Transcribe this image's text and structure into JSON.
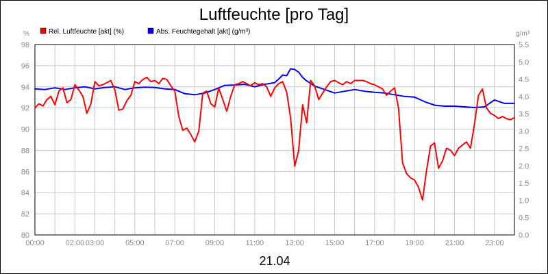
{
  "chart_data": {
    "type": "line",
    "title": "Luftfeuchte [pro Tag]",
    "date_label": "21.04",
    "y_left": {
      "unit": "%",
      "range": [
        80,
        98
      ],
      "ticks": [
        "80",
        "82",
        "84",
        "86",
        "88",
        "90",
        "92",
        "94",
        "96",
        "98"
      ]
    },
    "y_right": {
      "unit": "g/m³",
      "range": [
        0,
        5.5
      ],
      "ticks": [
        "0.0",
        "0.5",
        "1.0",
        "1.5",
        "2.0",
        "2.5",
        "3.0",
        "3.5",
        "4.0",
        "4.5",
        "5.0",
        "5.5"
      ]
    },
    "x": {
      "range_hours": [
        0,
        24
      ],
      "tick_labels": [
        {
          "h": 0,
          "label": "00:00"
        },
        {
          "h": 2,
          "label": "02:00"
        },
        {
          "h": 3,
          "label": "03:00"
        },
        {
          "h": 5,
          "label": "05:00"
        },
        {
          "h": 7,
          "label": "07:00"
        },
        {
          "h": 9,
          "label": "09:00"
        },
        {
          "h": 11,
          "label": "11:00"
        },
        {
          "h": 13,
          "label": "13:00"
        },
        {
          "h": 15,
          "label": "15:00"
        },
        {
          "h": 17,
          "label": "17:00"
        },
        {
          "h": 19,
          "label": "19:00"
        },
        {
          "h": 21,
          "label": "21:00"
        },
        {
          "h": 23,
          "label": "23:00"
        }
      ]
    },
    "grid": true,
    "legend_position": "top-left",
    "series": [
      {
        "name": "Rel. Luftfeuchte [akt] (%)",
        "color": "#ff0000",
        "axis": "left",
        "x": [
          0,
          0.2,
          0.4,
          0.6,
          0.8,
          1.0,
          1.2,
          1.4,
          1.6,
          1.8,
          2.0,
          2.2,
          2.4,
          2.6,
          2.8,
          3.0,
          3.2,
          3.4,
          3.6,
          3.8,
          4.0,
          4.2,
          4.4,
          4.6,
          4.8,
          5.0,
          5.2,
          5.4,
          5.6,
          5.8,
          6.0,
          6.2,
          6.4,
          6.6,
          6.8,
          7.0,
          7.2,
          7.4,
          7.6,
          7.8,
          8.0,
          8.2,
          8.4,
          8.6,
          8.8,
          9.0,
          9.2,
          9.4,
          9.6,
          9.8,
          10.0,
          10.2,
          10.4,
          10.6,
          10.8,
          11.0,
          11.2,
          11.4,
          11.6,
          11.8,
          12.0,
          12.2,
          12.4,
          12.6,
          12.8,
          13.0,
          13.2,
          13.4,
          13.6,
          13.8,
          14.0,
          14.2,
          14.4,
          14.6,
          14.8,
          15.0,
          15.2,
          15.4,
          15.6,
          15.8,
          16.0,
          16.2,
          16.4,
          16.6,
          16.8,
          17.0,
          17.2,
          17.4,
          17.6,
          17.8,
          18.0,
          18.2,
          18.4,
          18.6,
          18.8,
          19.0,
          19.2,
          19.4,
          19.6,
          19.8,
          20.0,
          20.2,
          20.4,
          20.6,
          20.8,
          21.0,
          21.2,
          21.4,
          21.6,
          21.8,
          22.0,
          22.2,
          22.4,
          22.6,
          22.8,
          23.0,
          23.2,
          23.4,
          23.6,
          23.8,
          24.0
        ],
        "values": [
          92.0,
          92.4,
          92.2,
          92.8,
          93.1,
          92.3,
          93.6,
          93.9,
          92.5,
          92.8,
          94.2,
          93.7,
          93.1,
          91.5,
          92.4,
          94.5,
          94.1,
          94.2,
          94.4,
          94.6,
          93.7,
          91.8,
          91.9,
          92.7,
          93.2,
          94.5,
          94.3,
          94.7,
          94.9,
          94.5,
          94.6,
          94.3,
          94.8,
          94.7,
          94.1,
          93.6,
          91.2,
          89.9,
          90.1,
          89.5,
          88.8,
          89.8,
          93.4,
          93.6,
          92.4,
          92.1,
          93.9,
          92.8,
          91.7,
          93.1,
          94.2,
          94.3,
          94.5,
          94.3,
          94.1,
          94.4,
          94.2,
          94.3,
          94.0,
          93.1,
          93.9,
          94.3,
          94.5,
          93.5,
          91.0,
          86.5,
          88.0,
          92.3,
          90.6,
          94.6,
          94.1,
          92.8,
          93.4,
          94.0,
          94.5,
          94.6,
          94.4,
          94.2,
          94.5,
          94.3,
          94.6,
          94.6,
          94.6,
          94.5,
          94.3,
          94.2,
          94.0,
          93.8,
          93.2,
          93.6,
          93.9,
          92.0,
          86.8,
          85.8,
          85.4,
          85.2,
          84.5,
          83.3,
          86.1,
          88.4,
          88.7,
          86.3,
          87.0,
          88.2,
          88.0,
          87.5,
          88.2,
          88.5,
          88.8,
          88.2,
          90.5,
          93.2,
          93.8,
          92.0,
          91.5,
          91.3,
          91.0,
          91.2,
          91.0,
          90.9,
          91.1
        ]
      },
      {
        "name": "Abs. Feuchtegehalt [akt] (g/m³)",
        "color": "#0000ff",
        "axis": "right",
        "x": [
          0,
          0.5,
          1.0,
          1.5,
          2.0,
          2.5,
          3.0,
          3.5,
          4.0,
          4.5,
          5.0,
          5.5,
          6.0,
          6.5,
          7.0,
          7.5,
          8.0,
          8.5,
          9.0,
          9.5,
          10.0,
          10.5,
          11.0,
          11.5,
          12.0,
          12.2,
          12.4,
          12.6,
          12.8,
          13.0,
          13.2,
          13.4,
          13.6,
          14.0,
          14.5,
          15.0,
          15.5,
          16.0,
          16.5,
          17.0,
          17.5,
          18.0,
          18.5,
          19.0,
          19.5,
          20.0,
          20.5,
          21.0,
          21.5,
          22.0,
          22.5,
          23.0,
          23.5,
          24.0
        ],
        "values": [
          4.22,
          4.2,
          4.25,
          4.2,
          4.25,
          4.28,
          4.22,
          4.26,
          4.28,
          4.2,
          4.25,
          4.27,
          4.26,
          4.22,
          4.2,
          4.08,
          4.05,
          4.1,
          4.2,
          4.32,
          4.33,
          4.35,
          4.28,
          4.35,
          4.4,
          4.5,
          4.62,
          4.6,
          4.8,
          4.78,
          4.7,
          4.55,
          4.45,
          4.3,
          4.2,
          4.1,
          4.15,
          4.2,
          4.15,
          4.12,
          4.1,
          4.05,
          4.0,
          3.98,
          3.85,
          3.75,
          3.72,
          3.72,
          3.7,
          3.68,
          3.7,
          3.9,
          3.8,
          3.8
        ]
      }
    ]
  }
}
